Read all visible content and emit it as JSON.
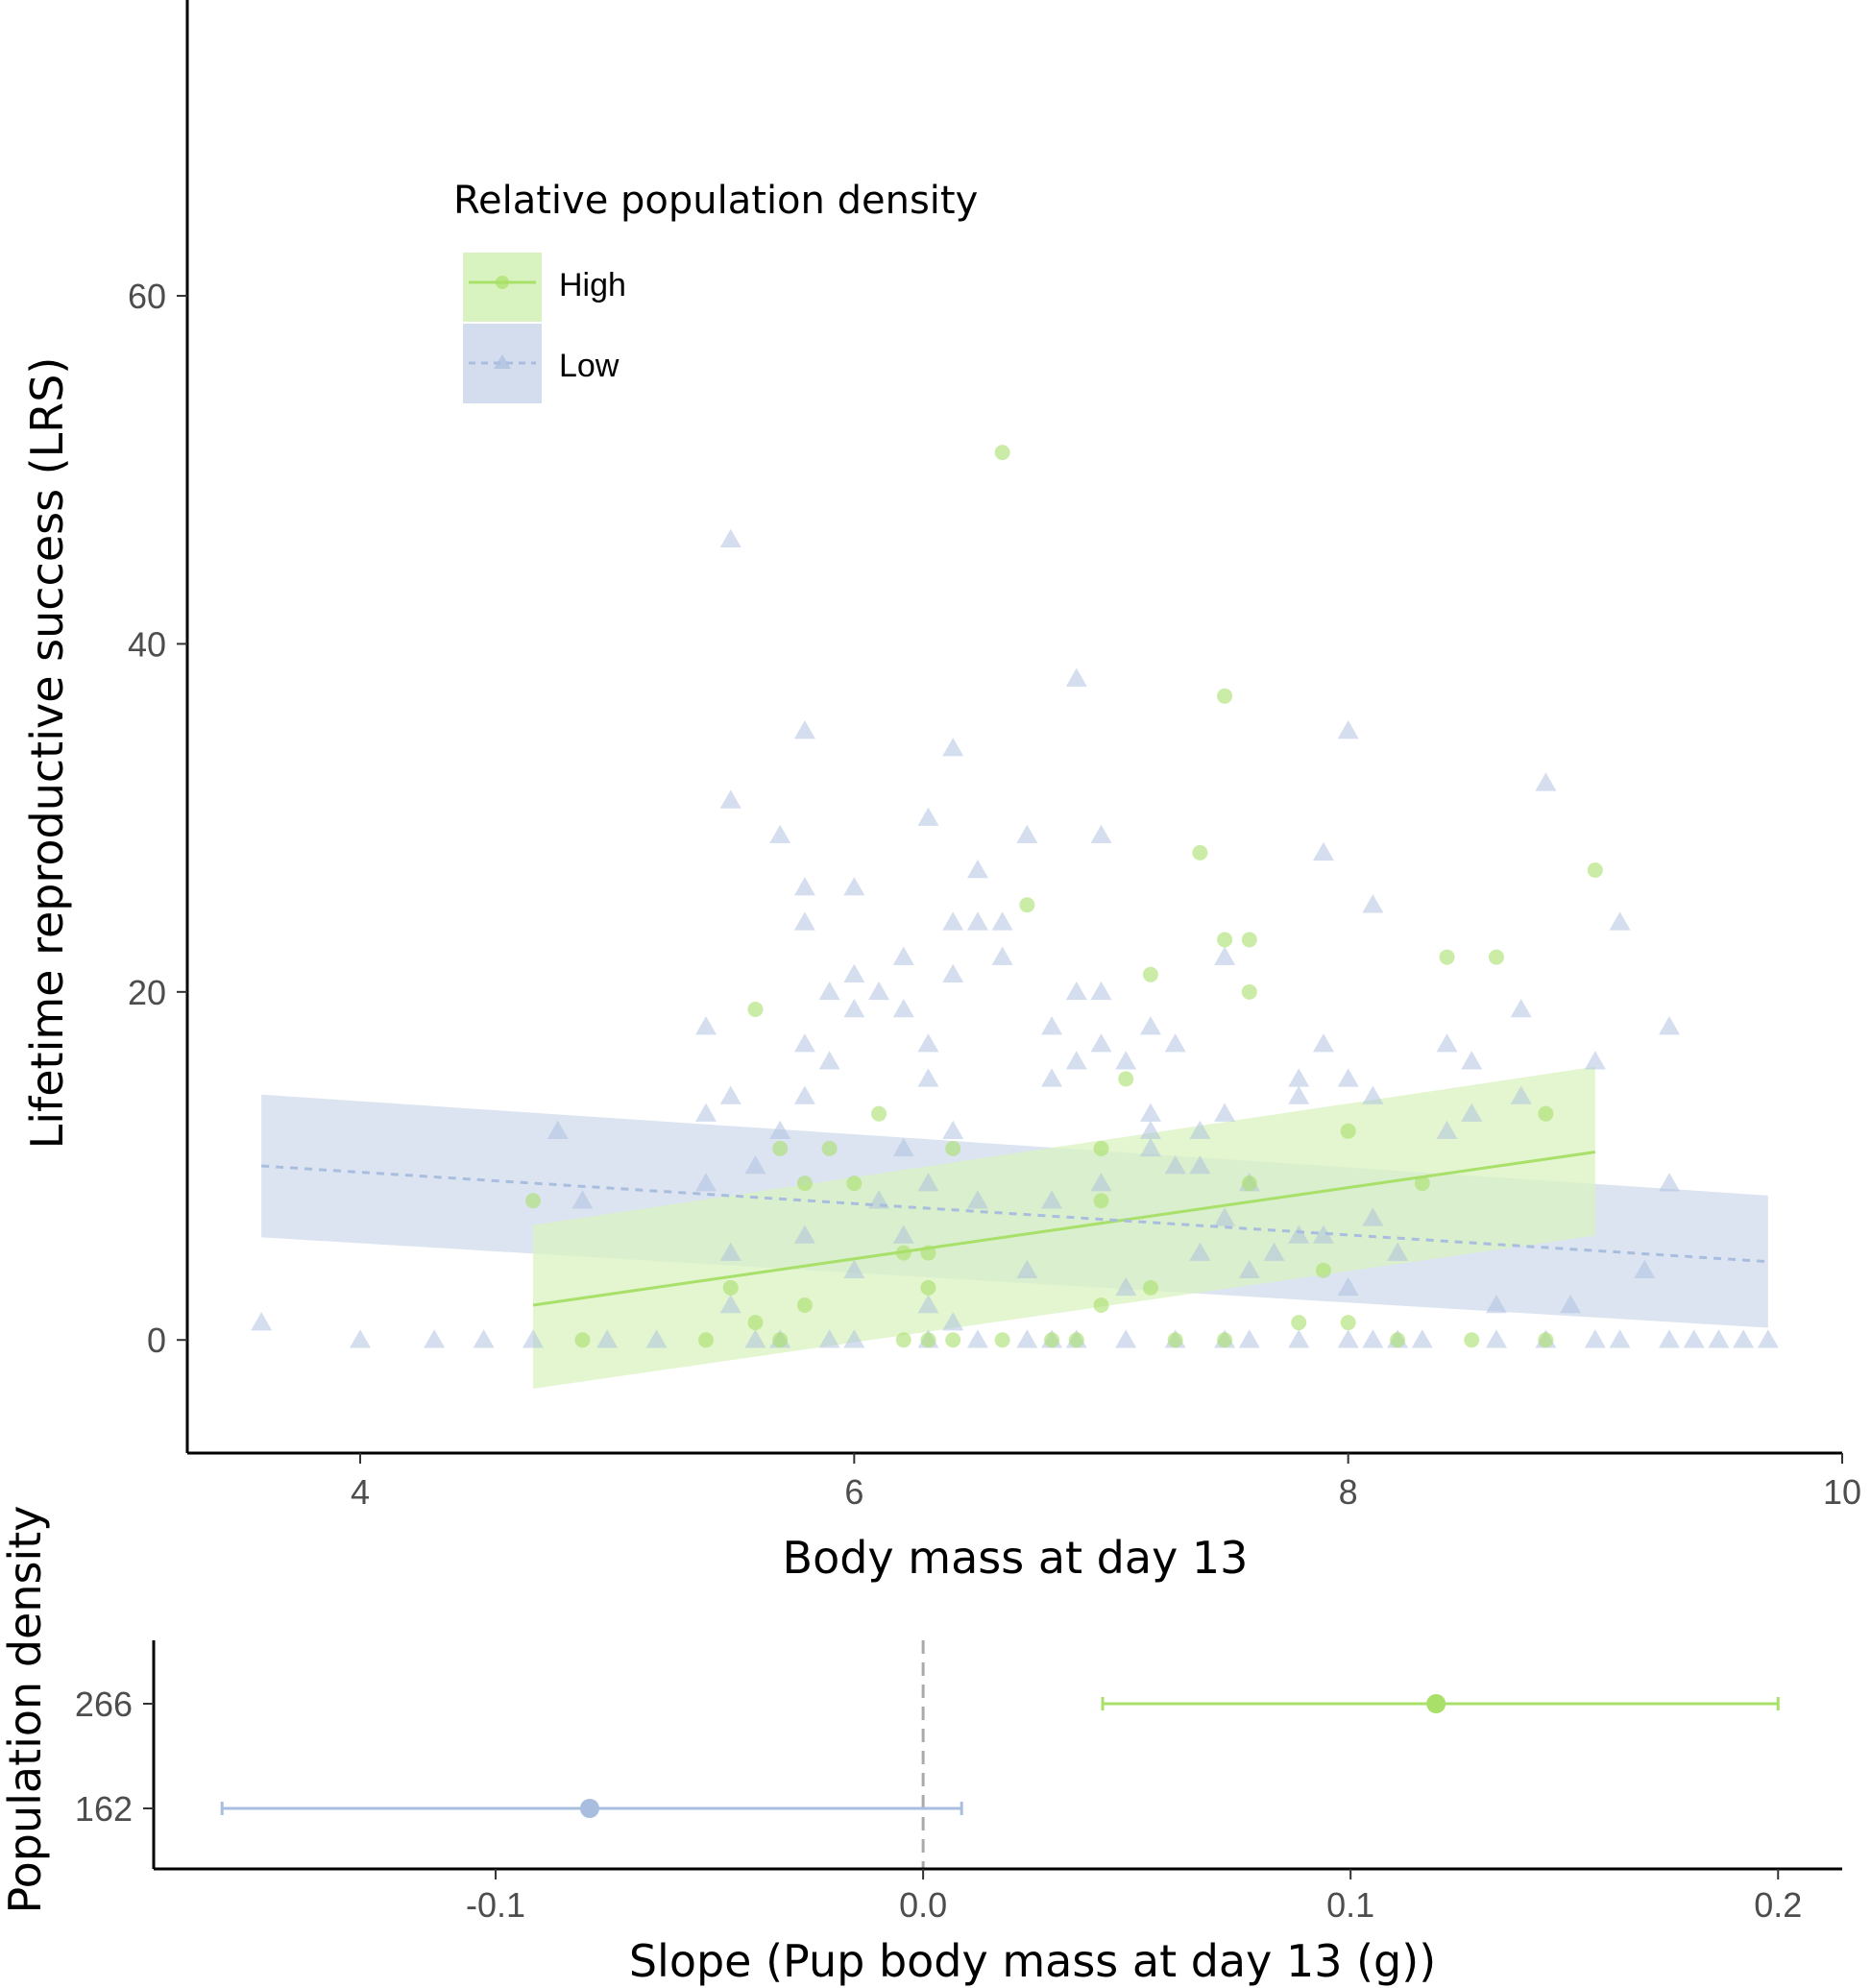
{
  "colors": {
    "high": "#a8e06a",
    "high_fill": "#d9f3c0",
    "low": "#a9bedf",
    "low_fill": "#d3ddee"
  },
  "chart_data": [
    {
      "type": "scatter",
      "title": "",
      "xlabel": "Body mass at day 13",
      "ylabel": "Lifetime reproductive success (LRS)",
      "xlim": [
        3.3,
        10.0
      ],
      "ylim": [
        -6.5,
        77
      ],
      "xticks": [
        4,
        6,
        8,
        10
      ],
      "yticks": [
        0,
        20,
        40,
        60
      ],
      "grid": false,
      "legend": {
        "title": "Relative population density",
        "position": "top-left",
        "entries": [
          {
            "label": "High",
            "series": "high"
          },
          {
            "label": "Low",
            "series": "low"
          }
        ]
      },
      "series": [
        {
          "name": "High",
          "key": "high",
          "marker": "circle",
          "fit": {
            "x": [
              4.7,
              9.0
            ],
            "y": [
              2.0,
              10.8
            ],
            "ci_lower": [
              -2.8,
              6.0
            ],
            "ci_upper": [
              6.6,
              15.7
            ],
            "linestyle": "solid"
          },
          "points": [
            [
              4.7,
              8
            ],
            [
              4.9,
              0
            ],
            [
              5.4,
              0
            ],
            [
              5.5,
              3
            ],
            [
              5.6,
              1
            ],
            [
              5.6,
              19
            ],
            [
              5.7,
              0
            ],
            [
              5.7,
              11
            ],
            [
              5.8,
              2
            ],
            [
              5.8,
              9
            ],
            [
              5.9,
              11
            ],
            [
              6.0,
              9
            ],
            [
              6.1,
              13
            ],
            [
              6.2,
              0
            ],
            [
              6.2,
              5
            ],
            [
              6.3,
              0
            ],
            [
              6.3,
              5
            ],
            [
              6.3,
              3
            ],
            [
              6.4,
              0
            ],
            [
              6.4,
              11
            ],
            [
              6.6,
              51
            ],
            [
              6.6,
              0
            ],
            [
              6.7,
              25
            ],
            [
              6.8,
              0
            ],
            [
              6.9,
              0
            ],
            [
              7.0,
              2
            ],
            [
              7.0,
              11
            ],
            [
              7.0,
              8
            ],
            [
              7.1,
              15
            ],
            [
              7.2,
              21
            ],
            [
              7.2,
              3
            ],
            [
              7.3,
              0
            ],
            [
              7.4,
              28
            ],
            [
              7.5,
              37
            ],
            [
              7.5,
              23
            ],
            [
              7.5,
              0
            ],
            [
              7.6,
              23
            ],
            [
              7.6,
              20
            ],
            [
              7.6,
              9
            ],
            [
              7.8,
              1
            ],
            [
              7.9,
              4
            ],
            [
              8.0,
              12
            ],
            [
              8.0,
              1
            ],
            [
              8.2,
              0
            ],
            [
              8.3,
              9
            ],
            [
              8.4,
              22
            ],
            [
              8.5,
              0
            ],
            [
              8.6,
              22
            ],
            [
              8.8,
              13
            ],
            [
              8.8,
              0
            ],
            [
              9.0,
              27
            ]
          ]
        },
        {
          "name": "Low",
          "key": "low",
          "marker": "triangle",
          "fit": {
            "x": [
              3.6,
              9.7
            ],
            "y": [
              10.0,
              4.5
            ],
            "ci_lower": [
              5.9,
              0.7
            ],
            "ci_upper": [
              14.1,
              8.3
            ],
            "linestyle": "dashed"
          },
          "points": [
            [
              3.6,
              1
            ],
            [
              4.0,
              0
            ],
            [
              4.3,
              0
            ],
            [
              4.5,
              0
            ],
            [
              4.7,
              0
            ],
            [
              4.8,
              12
            ],
            [
              4.9,
              8
            ],
            [
              5.0,
              0
            ],
            [
              5.2,
              0
            ],
            [
              5.4,
              18
            ],
            [
              5.4,
              13
            ],
            [
              5.4,
              9
            ],
            [
              5.5,
              46
            ],
            [
              5.5,
              31
            ],
            [
              5.5,
              14
            ],
            [
              5.5,
              5
            ],
            [
              5.5,
              2
            ],
            [
              5.6,
              10
            ],
            [
              5.7,
              29
            ],
            [
              5.7,
              12
            ],
            [
              5.7,
              0
            ],
            [
              5.8,
              35
            ],
            [
              5.8,
              26
            ],
            [
              5.8,
              24
            ],
            [
              5.8,
              17
            ],
            [
              5.8,
              14
            ],
            [
              5.8,
              6
            ],
            [
              5.9,
              16
            ],
            [
              5.9,
              0
            ],
            [
              5.9,
              20
            ],
            [
              6.0,
              26
            ],
            [
              6.0,
              21
            ],
            [
              6.0,
              19
            ],
            [
              6.0,
              0
            ],
            [
              6.0,
              4
            ],
            [
              6.1,
              20
            ],
            [
              6.1,
              8
            ],
            [
              6.2,
              22
            ],
            [
              6.2,
              19
            ],
            [
              6.2,
              11
            ],
            [
              6.2,
              6
            ],
            [
              6.3,
              30
            ],
            [
              6.3,
              17
            ],
            [
              6.3,
              15
            ],
            [
              6.3,
              9
            ],
            [
              6.3,
              2
            ],
            [
              6.3,
              0
            ],
            [
              6.4,
              34
            ],
            [
              6.4,
              24
            ],
            [
              6.4,
              21
            ],
            [
              6.4,
              12
            ],
            [
              6.4,
              1
            ],
            [
              6.5,
              24
            ],
            [
              6.5,
              0
            ],
            [
              6.5,
              27
            ],
            [
              6.5,
              8
            ],
            [
              6.6,
              22
            ],
            [
              6.6,
              24
            ],
            [
              6.7,
              29
            ],
            [
              6.7,
              0
            ],
            [
              6.7,
              4
            ],
            [
              6.8,
              18
            ],
            [
              6.8,
              15
            ],
            [
              6.8,
              8
            ],
            [
              6.9,
              38
            ],
            [
              6.9,
              20
            ],
            [
              6.9,
              16
            ],
            [
              6.9,
              0
            ],
            [
              7.0,
              29
            ],
            [
              7.0,
              20
            ],
            [
              7.0,
              17
            ],
            [
              7.0,
              9
            ],
            [
              7.1,
              16
            ],
            [
              7.1,
              0
            ],
            [
              7.1,
              3
            ],
            [
              7.2,
              18
            ],
            [
              7.2,
              13
            ],
            [
              7.2,
              12
            ],
            [
              7.2,
              11
            ],
            [
              7.3,
              10
            ],
            [
              7.3,
              0
            ],
            [
              7.3,
              17
            ],
            [
              7.4,
              12
            ],
            [
              7.4,
              10
            ],
            [
              7.4,
              5
            ],
            [
              7.5,
              22
            ],
            [
              7.5,
              13
            ],
            [
              7.5,
              0
            ],
            [
              7.5,
              7
            ],
            [
              7.6,
              9
            ],
            [
              7.6,
              4
            ],
            [
              7.7,
              5
            ],
            [
              7.8,
              15
            ],
            [
              7.8,
              14
            ],
            [
              7.8,
              6
            ],
            [
              7.8,
              0
            ],
            [
              7.9,
              28
            ],
            [
              7.9,
              17
            ],
            [
              7.9,
              6
            ],
            [
              8.0,
              15
            ],
            [
              8.0,
              0
            ],
            [
              8.0,
              35
            ],
            [
              8.0,
              3
            ],
            [
              8.1,
              25
            ],
            [
              8.1,
              14
            ],
            [
              8.1,
              7
            ],
            [
              8.1,
              0
            ],
            [
              8.2,
              5
            ],
            [
              8.3,
              0
            ],
            [
              8.4,
              17
            ],
            [
              8.4,
              12
            ],
            [
              8.5,
              16
            ],
            [
              8.5,
              13
            ],
            [
              8.6,
              0
            ],
            [
              8.6,
              2
            ],
            [
              8.7,
              19
            ],
            [
              8.7,
              14
            ],
            [
              8.8,
              32
            ],
            [
              8.8,
              0
            ],
            [
              8.9,
              2
            ],
            [
              9.0,
              0
            ],
            [
              9.0,
              16
            ],
            [
              9.1,
              24
            ],
            [
              9.1,
              0
            ],
            [
              9.2,
              4
            ],
            [
              9.3,
              18
            ],
            [
              9.3,
              9
            ],
            [
              9.3,
              0
            ],
            [
              9.4,
              0
            ],
            [
              9.5,
              0
            ],
            [
              9.6,
              0
            ],
            [
              9.7,
              0
            ],
            [
              6.8,
              0
            ],
            [
              7.6,
              0
            ],
            [
              8.2,
              0
            ],
            [
              5.6,
              0
            ]
          ]
        }
      ]
    },
    {
      "type": "errorbar",
      "title": "",
      "xlabel": "Slope (Pup body mass at day 13 (g))",
      "ylabel": "Population density",
      "xlim": [
        -0.18,
        0.215
      ],
      "xticks": [
        -0.1,
        0.0,
        0.1,
        0.2
      ],
      "xtick_labels": [
        "-0.1",
        "0.0",
        "0.1",
        "0.2"
      ],
      "categories": [
        "266",
        "162"
      ],
      "reference_line": 0.0,
      "series": [
        {
          "name": "266",
          "key": "high",
          "estimate": 0.12,
          "lower": 0.042,
          "upper": 0.2
        },
        {
          "name": "162",
          "key": "low",
          "estimate": -0.078,
          "lower": -0.164,
          "upper": 0.009
        }
      ]
    }
  ]
}
